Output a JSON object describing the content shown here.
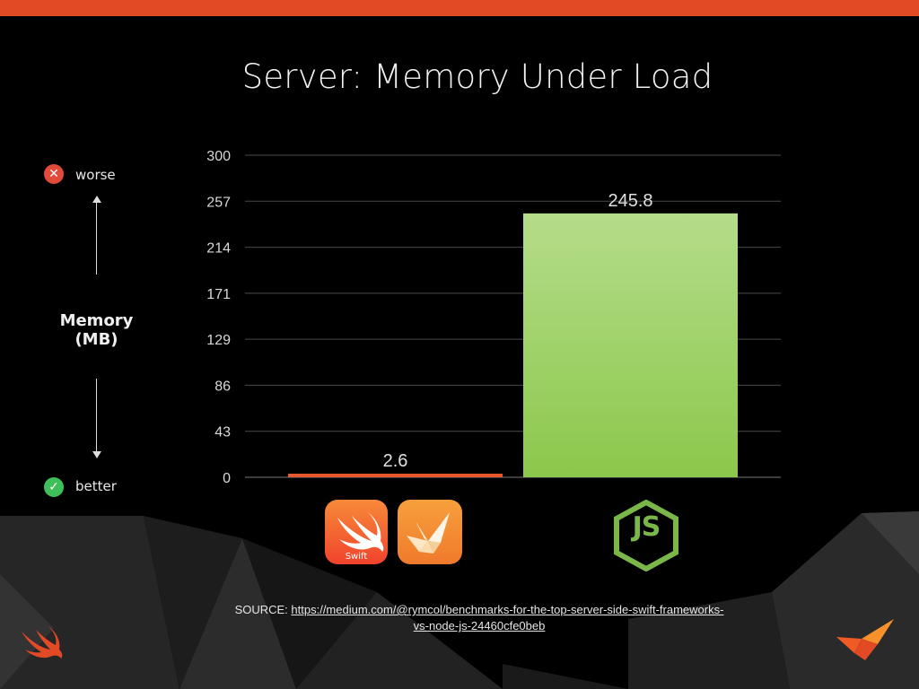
{
  "title": "Server: Memory Under Load",
  "side": {
    "worse_label": "worse",
    "better_label": "better",
    "axis_title_line1": "Memory",
    "axis_title_line2": "(MB)"
  },
  "logos": {
    "swift_text": "Swift",
    "node_text": "JS"
  },
  "source": {
    "prefix": "SOURCE: ",
    "link_text_line1": "https://medium.com/@rymcol/benchmarks-for-the-top-server-side-swift-frameworks-",
    "link_text_line2": "vs-node-js-24460cfe0beb"
  },
  "colors": {
    "accent": "#e24a26",
    "swift_bar": "#e8582d",
    "node_bar_top": "#b4dc8a",
    "node_bar_bottom": "#8cc84b"
  },
  "chart_data": {
    "type": "bar",
    "categories": [
      "",
      ""
    ],
    "values": [
      2.6,
      245.8
    ],
    "value_labels": [
      "2.6",
      "245.8"
    ],
    "yticks": [
      "0",
      "43",
      "86",
      "129",
      "171",
      "214",
      "257",
      "300"
    ],
    "ylim": [
      0,
      300
    ],
    "grid": true
  }
}
